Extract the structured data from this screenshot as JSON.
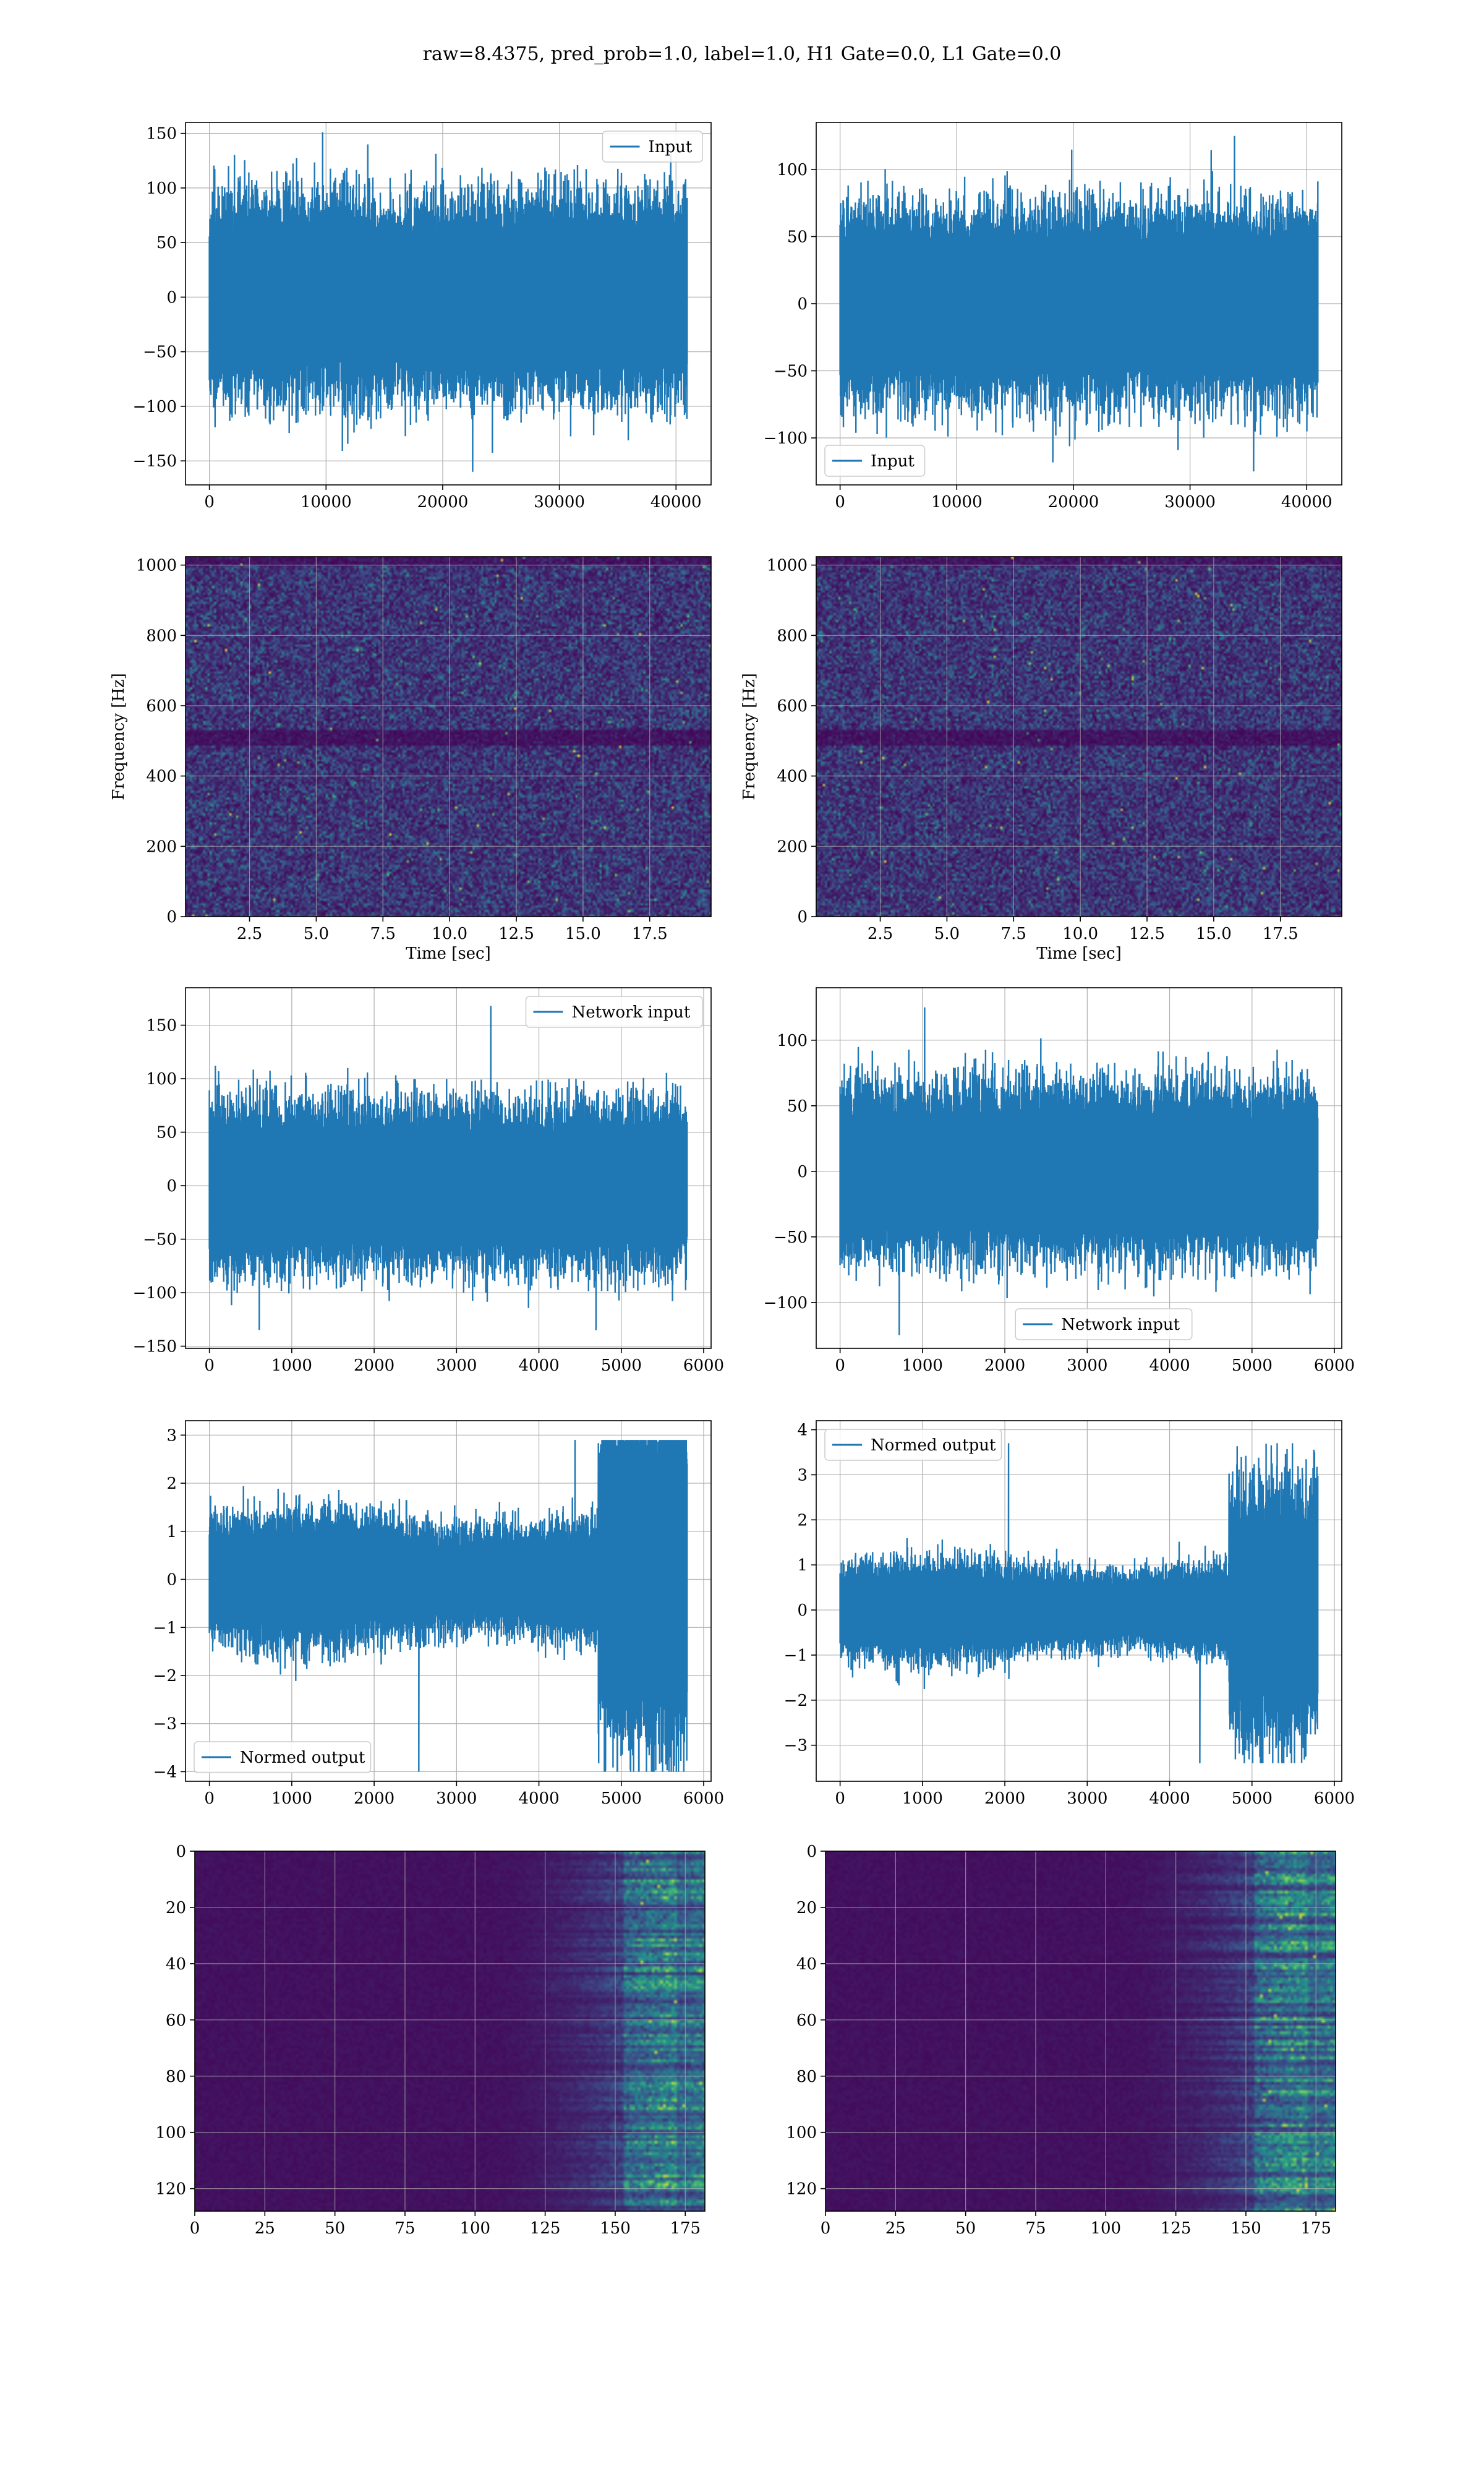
{
  "figure": {
    "title": "raw=8.4375, pred_prob=1.0, label=1.0, H1 Gate=0.0, L1 Gate=0.0"
  },
  "colors": {
    "line": "#1f77b4",
    "grid": "#b0b0b0",
    "viridis_low": "#440154",
    "viridis_mid": "#21918c",
    "viridis_high": "#fde725"
  },
  "chart_data": [
    {
      "id": "p0",
      "type": "line",
      "series": [
        {
          "name": "Input"
        }
      ],
      "legend": "top-right",
      "grid": true,
      "xlim": [
        -2048,
        43008
      ],
      "ylim": [
        -172,
        160
      ],
      "xticks": [
        0,
        10000,
        20000,
        30000,
        40000
      ],
      "yticks": [
        -150,
        -100,
        -50,
        0,
        50,
        100,
        150
      ],
      "signal": {
        "n": 40960,
        "core": 28,
        "max": 151,
        "min": -160,
        "envelope": "flat"
      }
    },
    {
      "id": "p1",
      "type": "line",
      "series": [
        {
          "name": "Input"
        }
      ],
      "legend": "bottom-left",
      "grid": true,
      "xlim": [
        -2048,
        43008
      ],
      "ylim": [
        -135,
        135
      ],
      "xticks": [
        0,
        10000,
        20000,
        30000,
        40000
      ],
      "yticks": [
        -100,
        -50,
        0,
        50,
        100
      ],
      "signal": {
        "n": 40960,
        "core": 22,
        "max": 125,
        "min": -125,
        "envelope": "flat"
      }
    },
    {
      "id": "p2",
      "type": "heatmap",
      "grid": true,
      "xlabel": "Time [sec]",
      "ylabel": "Frequency [Hz]",
      "xlim": [
        0.1,
        19.8
      ],
      "ylim": [
        0,
        1024
      ],
      "xticks": [
        2.5,
        5.0,
        7.5,
        10.0,
        12.5,
        15.0,
        17.5
      ],
      "yticks": [
        0,
        200,
        400,
        600,
        800,
        1000
      ]
    },
    {
      "id": "p3",
      "type": "heatmap",
      "grid": true,
      "xlabel": "Time [sec]",
      "ylabel": "Frequency [Hz]",
      "xlim": [
        0.1,
        19.8
      ],
      "ylim": [
        0,
        1024
      ],
      "xticks": [
        2.5,
        5.0,
        7.5,
        10.0,
        12.5,
        15.0,
        17.5
      ],
      "yticks": [
        0,
        200,
        400,
        600,
        800,
        1000
      ]
    },
    {
      "id": "p4",
      "type": "line",
      "series": [
        {
          "name": "Network input"
        }
      ],
      "legend": "top-right",
      "grid": true,
      "xlim": [
        -290,
        6090
      ],
      "ylim": [
        -152,
        185
      ],
      "xticks": [
        0,
        1000,
        2000,
        3000,
        4000,
        5000,
        6000
      ],
      "yticks": [
        -150,
        -100,
        -50,
        0,
        50,
        100,
        150
      ],
      "signal": {
        "n": 5800,
        "core": 24,
        "max": 168,
        "min": -135,
        "envelope": "flat"
      }
    },
    {
      "id": "p5",
      "type": "line",
      "series": [
        {
          "name": "Network input"
        }
      ],
      "legend": "bottom-center",
      "grid": true,
      "xlim": [
        -290,
        6090
      ],
      "ylim": [
        -135,
        140
      ],
      "xticks": [
        0,
        1000,
        2000,
        3000,
        4000,
        5000,
        6000
      ],
      "yticks": [
        -100,
        -50,
        0,
        50,
        100
      ],
      "signal": {
        "n": 5800,
        "core": 20,
        "max": 125,
        "min": -125,
        "envelope": "flat"
      }
    },
    {
      "id": "p6",
      "type": "line",
      "series": [
        {
          "name": "Normed output"
        }
      ],
      "legend": "bottom-left",
      "grid": true,
      "xlim": [
        -290,
        6090
      ],
      "ylim": [
        -4.2,
        3.3
      ],
      "xticks": [
        0,
        1000,
        2000,
        3000,
        4000,
        5000,
        6000
      ],
      "yticks": [
        -4,
        -3,
        -2,
        -1,
        0,
        1,
        2,
        3
      ],
      "signal": {
        "n": 5800,
        "core": 0.38,
        "max": 2.9,
        "min": -4.0,
        "envelope": "burst",
        "burst_start": 4720
      }
    },
    {
      "id": "p7",
      "type": "line",
      "series": [
        {
          "name": "Normed output"
        }
      ],
      "legend": "top-left",
      "grid": true,
      "xlim": [
        -290,
        6090
      ],
      "ylim": [
        -3.8,
        4.2
      ],
      "xticks": [
        0,
        1000,
        2000,
        3000,
        4000,
        5000,
        6000
      ],
      "yticks": [
        -3,
        -2,
        -1,
        0,
        1,
        2,
        3,
        4
      ],
      "signal": {
        "n": 5800,
        "core": 0.3,
        "max": 3.7,
        "min": -3.4,
        "envelope": "burst",
        "burst_start": 4720
      }
    },
    {
      "id": "p8",
      "type": "heatmap",
      "grid": true,
      "xlim": [
        0,
        182
      ],
      "ylim": [
        128,
        0
      ],
      "xticks": [
        0,
        25,
        50,
        75,
        100,
        125,
        150,
        175
      ],
      "yticks": [
        0,
        20,
        40,
        60,
        80,
        100,
        120
      ],
      "yinverted": true
    },
    {
      "id": "p9",
      "type": "heatmap",
      "grid": true,
      "xlim": [
        0,
        182
      ],
      "ylim": [
        128,
        0
      ],
      "xticks": [
        0,
        25,
        50,
        75,
        100,
        125,
        150,
        175
      ],
      "yticks": [
        0,
        20,
        40,
        60,
        80,
        100,
        120
      ],
      "yinverted": true
    }
  ]
}
